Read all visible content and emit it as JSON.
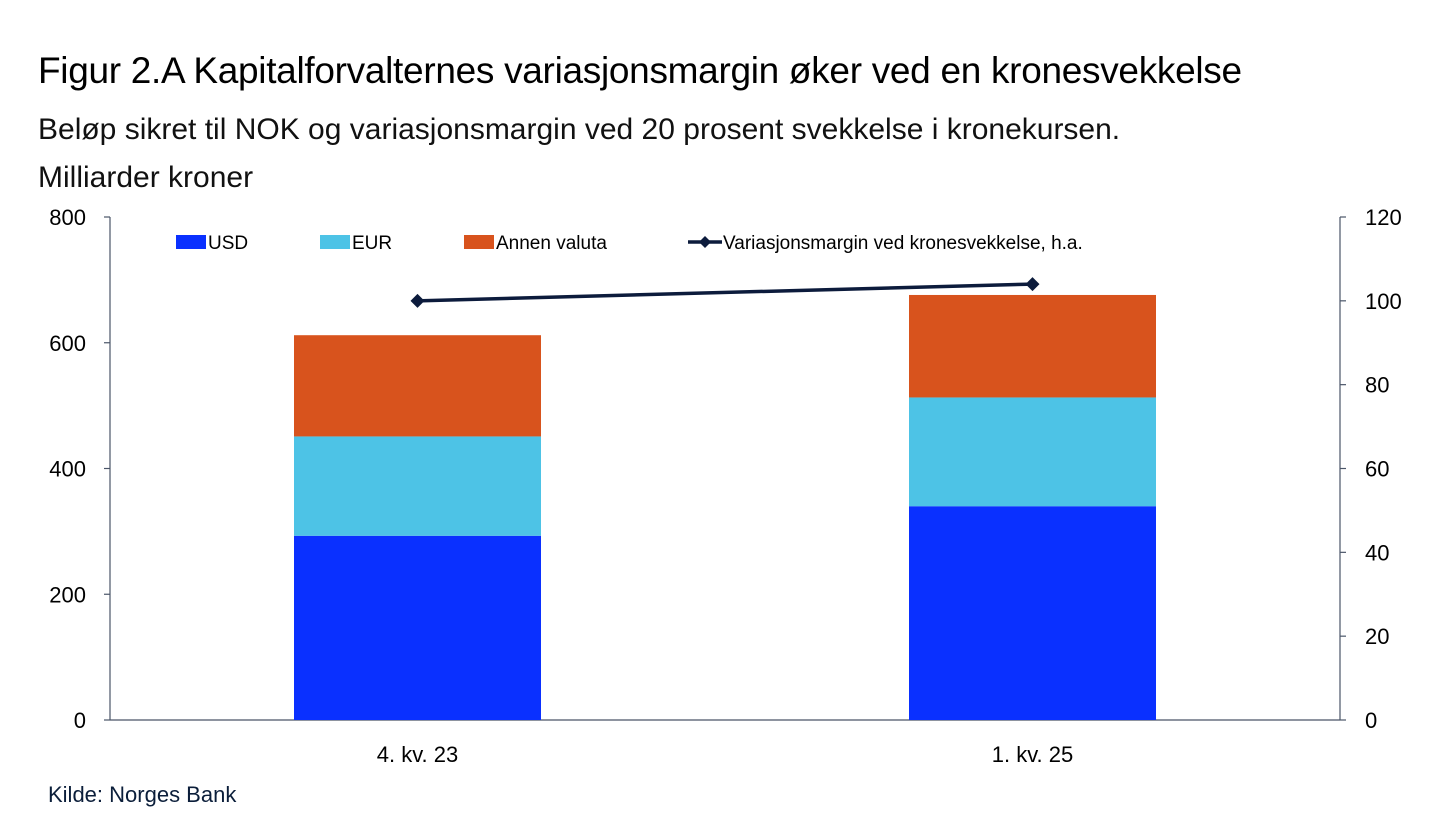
{
  "title": "Figur 2.A Kapitalforvalternes variasjonsmargin øker ved en kronesvekkelse",
  "subtitle_line1": "Beløp sikret til NOK og variasjonsmargin ved 20 prosent svekkelse i kronekursen.",
  "subtitle_line2": "Milliarder kroner",
  "source": "Kilde: Norges Bank",
  "chart_data": {
    "type": "bar",
    "stacked": true,
    "categories": [
      "4. kv. 23",
      "1. kv. 25"
    ],
    "series": [
      {
        "name": "USD",
        "values": [
          293,
          340
        ],
        "color": "#0a30ff",
        "axis": "left"
      },
      {
        "name": "EUR",
        "values": [
          158,
          173
        ],
        "color": "#4dc3e6",
        "axis": "left"
      },
      {
        "name": "Annen valuta",
        "values": [
          161,
          163
        ],
        "color": "#d8531d",
        "axis": "left"
      }
    ],
    "line_series": [
      {
        "name": "Variasjonsmargin ved kronesvekkelse, h.a.",
        "values": [
          100,
          104
        ],
        "color": "#0c1b3c",
        "axis": "right"
      }
    ],
    "ylim_left": [
      0,
      800
    ],
    "yticks_left": [
      0,
      200,
      400,
      600,
      800
    ],
    "ylim_right": [
      0,
      120
    ],
    "yticks_right": [
      0,
      20,
      40,
      60,
      80,
      100,
      120
    ],
    "legend_placement": "top",
    "grid": false
  }
}
